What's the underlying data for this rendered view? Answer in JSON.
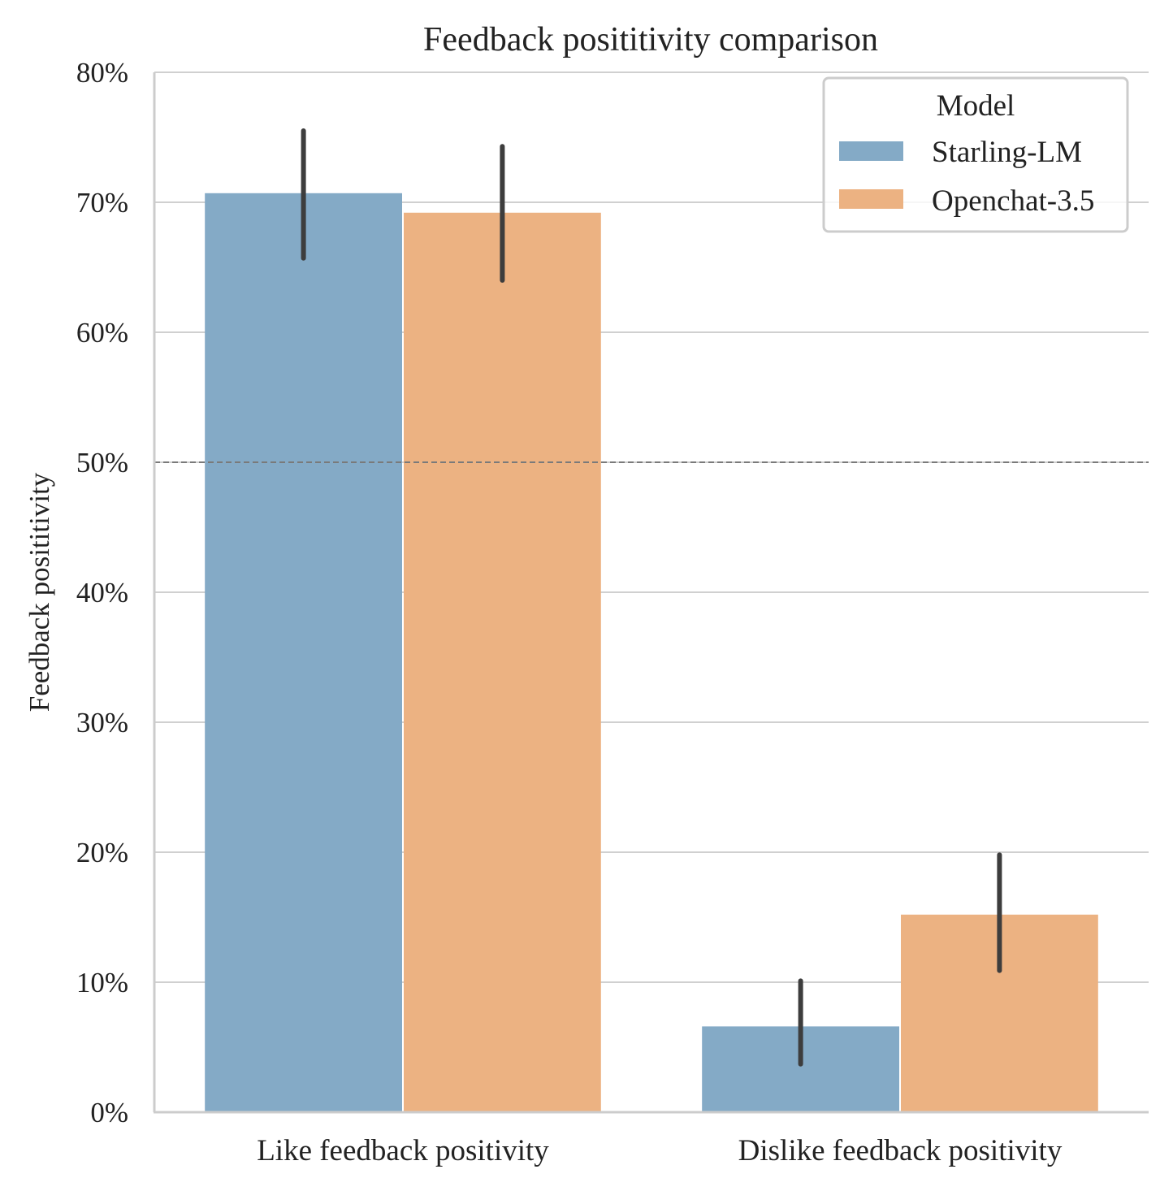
{
  "chart_data": {
    "type": "bar",
    "title": "Feedback posititivity comparison",
    "xlabel": "",
    "ylabel": "Feedback posititivity",
    "ylim": [
      0,
      80
    ],
    "y_tick_labels": [
      "0%",
      "10%",
      "20%",
      "30%",
      "40%",
      "50%",
      "60%",
      "70%",
      "80%"
    ],
    "y_tick_values": [
      0,
      10,
      20,
      30,
      40,
      50,
      60,
      70,
      80
    ],
    "grid": true,
    "reference_line": {
      "value": 50,
      "style": "dashed"
    },
    "categories": [
      "Like feedback positivity",
      "Dislike feedback positivity"
    ],
    "legend": {
      "title": "Model",
      "placement": "top-right"
    },
    "series": [
      {
        "name": "Starling-LM",
        "color": "#84aac6",
        "values": [
          70.7,
          6.6
        ],
        "ci_low": [
          65.7,
          3.7
        ],
        "ci_high": [
          75.5,
          10.1
        ]
      },
      {
        "name": "Openchat-3.5",
        "color": "#ecb282",
        "values": [
          69.2,
          15.2
        ],
        "ci_low": [
          64.0,
          10.9
        ],
        "ci_high": [
          74.3,
          19.8
        ]
      }
    ]
  }
}
